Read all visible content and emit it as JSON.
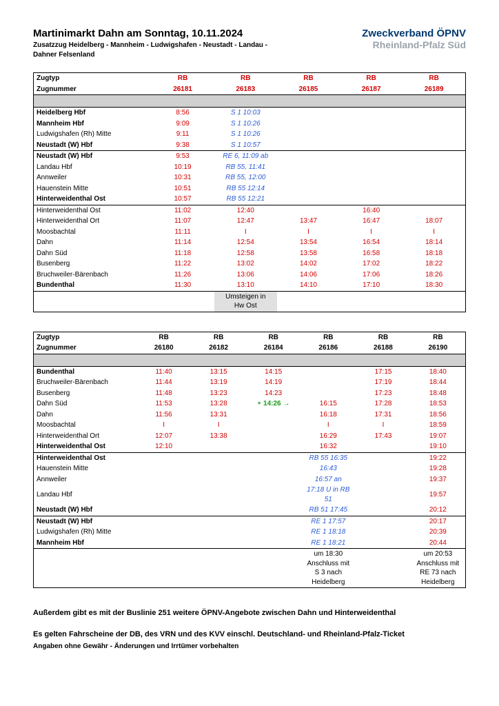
{
  "header": {
    "title": "Martinimarkt Dahn am Sonntag, 10.11.2024",
    "subtitle_line1": "Zusatzzug Heidelberg - Mannheim - Ludwigshafen - Neustadt - Landau -",
    "subtitle_line2": "Dahner Felsenland",
    "logo_top": "Zweckverband ÖPNV",
    "logo_bottom": "Rheinland-Pfalz Süd"
  },
  "labels": {
    "zugtyp": "Zugtyp",
    "zugnummer": "Zugnummer",
    "rb": "RB"
  },
  "table1": {
    "trains": [
      "26181",
      "26183",
      "26185",
      "26187",
      "26189"
    ],
    "stations": {
      "heidelberg": "Heidelberg Hbf",
      "mannheim": "Mannheim Hbf",
      "ludwigshafen": "Ludwigshafen (Rh) Mitte",
      "neustadt": "Neustadt (W) Hbf",
      "neustadt2": "Neustadt (W) Hbf",
      "landau": "Landau Hbf",
      "annweiler": "Annweiler",
      "hauenstein": "Hauenstein Mitte",
      "hw_ost": "Hinterweidenthal Ost",
      "hw_ost2": "Hinterweidenthal Ost",
      "hw_ort": "Hinterweidenthal Ort",
      "moosbachtal": "Moosbachtal",
      "dahn": "Dahn",
      "dahn_sud": "Dahn Süd",
      "busenberg": "Busenberg",
      "bruchweiler": "Bruchweiler-Bärenbach",
      "bundenthal": "Bundenthal"
    },
    "times": {
      "heidelberg": [
        "8:56",
        "S 1 10:03",
        "",
        "",
        ""
      ],
      "mannheim": [
        "9:09",
        "S 1 10:26",
        "",
        "",
        ""
      ],
      "ludwigshafen": [
        "9:11",
        "S 1 10:26",
        "",
        "",
        ""
      ],
      "neustadt": [
        "9:38",
        "S 1 10:57",
        "",
        "",
        ""
      ],
      "neustadt2": [
        "9:53",
        "RE 6, 11:09 ab",
        "",
        "",
        ""
      ],
      "landau": [
        "10:19",
        "RB 55, 11:41",
        "",
        "",
        ""
      ],
      "annweiler": [
        "10:31",
        "RB 55, 12:00",
        "",
        "",
        ""
      ],
      "hauenstein": [
        "10:51",
        "RB 55 12:14",
        "",
        "",
        ""
      ],
      "hw_ost": [
        "10:57",
        "RB 55 12:21",
        "",
        "",
        ""
      ],
      "hw_ost2": [
        "11:02",
        "12:40",
        "",
        "16:40",
        ""
      ],
      "hw_ort": [
        "11:07",
        "12:47",
        "13:47",
        "16:47",
        "18:07"
      ],
      "moosbachtal": [
        "11:11",
        "I",
        "I",
        "I",
        "I"
      ],
      "dahn": [
        "11:14",
        "12:54",
        "13:54",
        "16:54",
        "18:14"
      ],
      "dahn_sud": [
        "11:18",
        "12:58",
        "13:58",
        "16:58",
        "18:18"
      ],
      "busenberg": [
        "11:22",
        "13:02",
        "14:02",
        "17:02",
        "18:22"
      ],
      "bruchweiler": [
        "11:26",
        "13:06",
        "14:06",
        "17:06",
        "18:26"
      ],
      "bundenthal": [
        "11:30",
        "13:10",
        "14:10",
        "17:10",
        "18:30"
      ]
    },
    "umsteigen": "Umsteigen in",
    "umsteigen2": "Hw Ost"
  },
  "table2": {
    "trains": [
      "26180",
      "26182",
      "26184",
      "26186",
      "26188",
      "26190"
    ],
    "stations": {
      "bundenthal": "Bundenthal",
      "bruchweiler": "Bruchweiler-Bärenbach",
      "busenberg": "Busenberg",
      "dahn_sud": "Dahn Süd",
      "dahn": "Dahn",
      "moosbachtal": "Moosbachtal",
      "hw_ort": "Hinterweidenthal Ort",
      "hw_ost": "Hinterweidenthal Ost",
      "hw_ost2": "Hinterweidenthal Ost",
      "hauenstein": "Hauenstein Mitte",
      "annweiler": "Annweiler",
      "landau": "Landau Hbf",
      "neustadt": "Neustadt (W) Hbf",
      "neustadt2": "Neustadt (W) Hbf",
      "ludwigshafen": "Ludwigshafen (Rh) Mitte",
      "mannheim": "Mannheim Hbf"
    },
    "times": {
      "bundenthal": [
        "11:40",
        "13:15",
        "14:15",
        "",
        "17:15",
        "18:40"
      ],
      "bruchweiler": [
        "11:44",
        "13:19",
        "14:19",
        "",
        "17:19",
        "18:44"
      ],
      "busenberg": [
        "11:48",
        "13:23",
        "14:23",
        "",
        "17:23",
        "18:48"
      ],
      "dahn_sud": [
        "11:53",
        "13:28",
        "14:26",
        "16:15",
        "17:28",
        "18:53"
      ],
      "dahn": [
        "11:56",
        "13:31",
        "",
        "16:18",
        "17:31",
        "18:56"
      ],
      "moosbachtal": [
        "I",
        "I",
        "",
        "I",
        "I",
        "18:59"
      ],
      "hw_ort": [
        "12:07",
        "13:38",
        "",
        "16:29",
        "17:43",
        "19:07"
      ],
      "hw_ost": [
        "12:10",
        "",
        "",
        "16:32",
        "",
        "19:10"
      ],
      "hw_ost2": [
        "",
        "",
        "",
        "RB 55 16:35",
        "",
        "19:22"
      ],
      "hauenstein": [
        "",
        "",
        "",
        "16:43",
        "",
        "19:28"
      ],
      "annweiler": [
        "",
        "",
        "",
        "16:57 an",
        "",
        "19:37"
      ],
      "landau": [
        "",
        "",
        "",
        "17:18 U in RB 51",
        "",
        "19:57"
      ],
      "neustadt": [
        "",
        "",
        "",
        "RB 51 17:45",
        "",
        "20:12"
      ],
      "neustadt2": [
        "",
        "",
        "",
        "RE 1 17:57",
        "",
        "20:17"
      ],
      "ludwigshafen": [
        "",
        "",
        "",
        "RE 1 18:18",
        "",
        "20:39"
      ],
      "mannheim": [
        "",
        "",
        "",
        "RE 1 18:21",
        "",
        "20:44"
      ]
    },
    "dahn_sud_special": "∘ 14:26 →",
    "conn1_l1": "um 18:30",
    "conn1_l2": "Anschluss mit",
    "conn1_l3": "S 3 nach",
    "conn1_l4": "Heidelberg",
    "conn2_l1": "um 20:53",
    "conn2_l2": "Anschluss mit",
    "conn2_l3": "RE 73 nach",
    "conn2_l4": "Heidelberg"
  },
  "footer": {
    "line1": "Außerdem gibt es mit der Buslinie 251 weitere ÖPNV-Angebote zwischen Dahn und Hinterweidenthal",
    "line2": "Es gelten Fahrscheine der DB, des VRN und des KVV einschl. Deutschland- und Rheinland-Pfalz-Ticket",
    "line3": "Angaben ohne Gewähr - Änderungen und Irrtümer vorbehalten"
  },
  "colors": {
    "red": "#d00000",
    "blue": "#2a5bd7",
    "green": "#1a9b1a",
    "logo_top": "#003a70",
    "logo_bottom": "#9aa3ab",
    "spacer_bg": "#d0d0d0",
    "note_bg": "#e0e0e0"
  }
}
